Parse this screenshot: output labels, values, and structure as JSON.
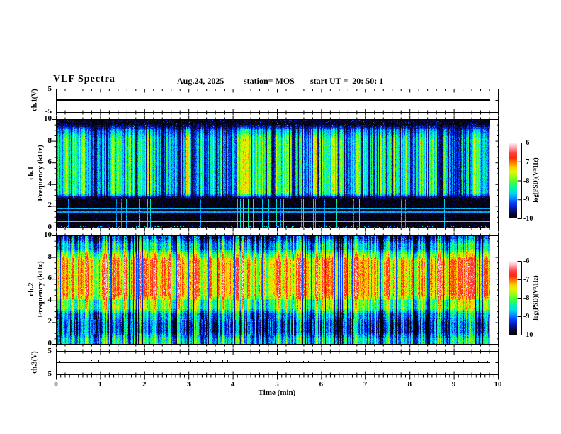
{
  "header": {
    "title": "VLF Spectra",
    "date": "Aug.24, 2025",
    "station": "station= MOS",
    "start_ut": "start UT =  20: 50: 1"
  },
  "time_axis": {
    "label": "Time (min)",
    "range_min": [
      0,
      10
    ],
    "major_ticks": [
      0,
      1,
      2,
      3,
      4,
      5,
      6,
      7,
      8,
      9,
      10
    ],
    "minor_step_min": 0.1,
    "data_end_min": 9.83
  },
  "colorbars": {
    "label": "log(PSD)(V²/Hz)",
    "ticks": [
      -6,
      -7,
      -8,
      -9,
      -10
    ],
    "range": [
      -10,
      -6
    ],
    "style": "rainbow: white/pink at -6 through red, yellow, green, cyan, blue to black at -10"
  },
  "panels": {
    "ch1_voltage": {
      "ylabel": "ch.1(V)",
      "ytick_labels": [
        "5",
        "-5"
      ],
      "ylim": [
        -5,
        5
      ]
    },
    "ch1_spec": {
      "ylabel_line1": "ch.1",
      "ylabel_line2": "Frequency (kHz)",
      "yticks": [
        0,
        2,
        4,
        6,
        8,
        10
      ],
      "ylim_khz": [
        0,
        10
      ]
    },
    "ch2_spec": {
      "ylabel_line1": "ch.2",
      "ylabel_line2": "Frequency (kHz)",
      "yticks": [
        0,
        2,
        4,
        6,
        8,
        10
      ],
      "ylim_khz": [
        0,
        10
      ]
    },
    "ch3_voltage": {
      "ylabel": "ch.3(V)",
      "ytick_labels": [
        "5",
        "-5"
      ],
      "ylim": [
        -5,
        5
      ]
    }
  },
  "chart_data": [
    {
      "type": "line",
      "name": "ch1_voltage_trace",
      "x_range_min": [
        0,
        9.83
      ],
      "value_V": 0,
      "description": "flat trace at 0 V across full record"
    },
    {
      "type": "heatmap",
      "name": "ch1_spectrogram",
      "xlabel": "Time (min)",
      "ylabel": "ch.1 Frequency (kHz)",
      "x_range_min": [
        0,
        9.83
      ],
      "y_range_khz": [
        0,
        10
      ],
      "z_label": "log(PSD)(V²/Hz)",
      "z_range": [
        -10,
        -6
      ],
      "seed": 90125,
      "bands": [
        {
          "f_khz": [
            9.3,
            10.0
          ],
          "level": -9.6,
          "texture": "black with sparse blue speckle"
        },
        {
          "f_khz": [
            2.7,
            9.3
          ],
          "level": -8.0,
          "texture": "dense green-cyan vertical impulse streaks, occasional red dots, black gap columns"
        },
        {
          "f_khz": [
            0.0,
            2.7
          ],
          "level": -9.8,
          "texture": "mostly black, faint blue streak continuations"
        }
      ],
      "horizontal_lines": [
        {
          "f_khz": 1.75,
          "level": -8.8
        },
        {
          "f_khz": 1.45,
          "level": -8.9
        },
        {
          "f_khz": 0.55,
          "level": -8.3
        }
      ]
    },
    {
      "type": "heatmap",
      "name": "ch2_spectrogram",
      "xlabel": "Time (min)",
      "ylabel": "ch.2 Frequency (kHz)",
      "x_range_min": [
        0,
        9.83
      ],
      "y_range_khz": [
        0,
        10
      ],
      "z_label": "log(PSD)(V²/Hz)",
      "z_range": [
        -10,
        -6
      ],
      "seed": 48613,
      "bands": [
        {
          "f_khz": [
            9.5,
            10.0
          ],
          "level": -9.5,
          "texture": "dark blue/black speckle"
        },
        {
          "f_khz": [
            8.5,
            9.5
          ],
          "level": -8.8,
          "texture": "blue-cyan"
        },
        {
          "f_khz": [
            7.9,
            8.5
          ],
          "level": -7.9,
          "texture": "green-yellow"
        },
        {
          "f_khz": [
            4.2,
            7.9
          ],
          "level": -7.3,
          "texture": "yellow-orange core with red patches, dark gap columns"
        },
        {
          "f_khz": [
            3.0,
            4.2
          ],
          "level": -8.1,
          "texture": "green"
        },
        {
          "f_khz": [
            2.2,
            3.0
          ],
          "level": -9.0,
          "texture": "cyan-blue"
        },
        {
          "f_khz": [
            0.75,
            2.2
          ],
          "level": -9.4,
          "texture": "dark blue with cyan-green vertical streaks"
        },
        {
          "f_khz": [
            0.0,
            0.75
          ],
          "level": -8.7,
          "texture": "cyan-green speckle"
        }
      ],
      "horizontal_lines": []
    },
    {
      "type": "line",
      "name": "ch3_voltage_trace",
      "x_range_min": [
        0,
        9.83
      ],
      "value_V": 0,
      "description": "flat trace at 0 V with tiny positive noise spikes"
    }
  ]
}
